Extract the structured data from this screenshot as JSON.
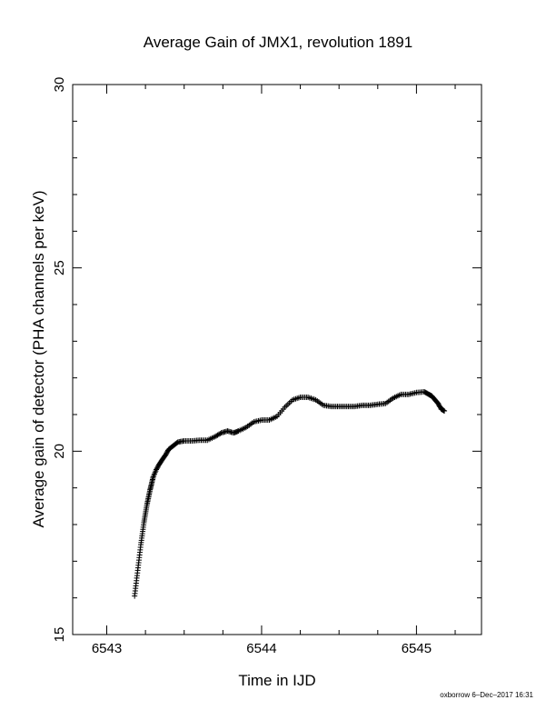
{
  "chart_data": {
    "type": "scatter",
    "title": "Average Gain of JMX1, revolution 1891",
    "xlabel": "Time in IJD",
    "ylabel": "Average gain of detector (PHA channels per keV)",
    "xlim": [
      6542.78,
      6545.42
    ],
    "ylim": [
      15,
      30
    ],
    "x_ticks": [
      "6543",
      "6544",
      "6545"
    ],
    "y_ticks": [
      "15",
      "20",
      "25",
      "30"
    ],
    "grid": false,
    "marker": "plus",
    "series": [
      {
        "x": [
          6543.18,
          6543.19,
          6543.2,
          6543.21,
          6543.22,
          6543.23,
          6543.24,
          6543.25,
          6543.26,
          6543.27,
          6543.28,
          6543.29,
          6543.3,
          6543.32,
          6543.34,
          6543.36,
          6543.38,
          6543.4,
          6543.43,
          6543.46,
          6543.5,
          6543.55,
          6543.6,
          6543.65,
          6543.7,
          6543.74,
          6543.78,
          6543.82,
          6543.85,
          6543.9,
          6543.95,
          6544.0,
          6544.05,
          6544.1,
          6544.15,
          6544.2,
          6544.25,
          6544.3,
          6544.35,
          6544.4,
          6544.45,
          6544.5,
          6544.55,
          6544.6,
          6544.65,
          6544.7,
          6544.75,
          6544.8,
          6544.85,
          6544.9,
          6544.95,
          6545.0,
          6545.05,
          6545.08,
          6545.1,
          6545.12,
          6545.14,
          6545.16,
          6545.18
        ],
        "y": [
          16.05,
          16.4,
          16.75,
          17.1,
          17.45,
          17.75,
          18.05,
          18.3,
          18.55,
          18.75,
          18.95,
          19.12,
          19.3,
          19.5,
          19.65,
          19.78,
          19.9,
          20.05,
          20.15,
          20.25,
          20.28,
          20.28,
          20.3,
          20.3,
          20.4,
          20.5,
          20.55,
          20.5,
          20.55,
          20.65,
          20.8,
          20.85,
          20.85,
          20.95,
          21.2,
          21.4,
          21.47,
          21.47,
          21.4,
          21.25,
          21.22,
          21.22,
          21.22,
          21.22,
          21.25,
          21.25,
          21.28,
          21.3,
          21.45,
          21.55,
          21.55,
          21.6,
          21.62,
          21.55,
          21.5,
          21.4,
          21.3,
          21.15,
          21.1
        ]
      }
    ]
  },
  "footer": {
    "text": "oxborrow  6–Dec–2017 16:31"
  }
}
